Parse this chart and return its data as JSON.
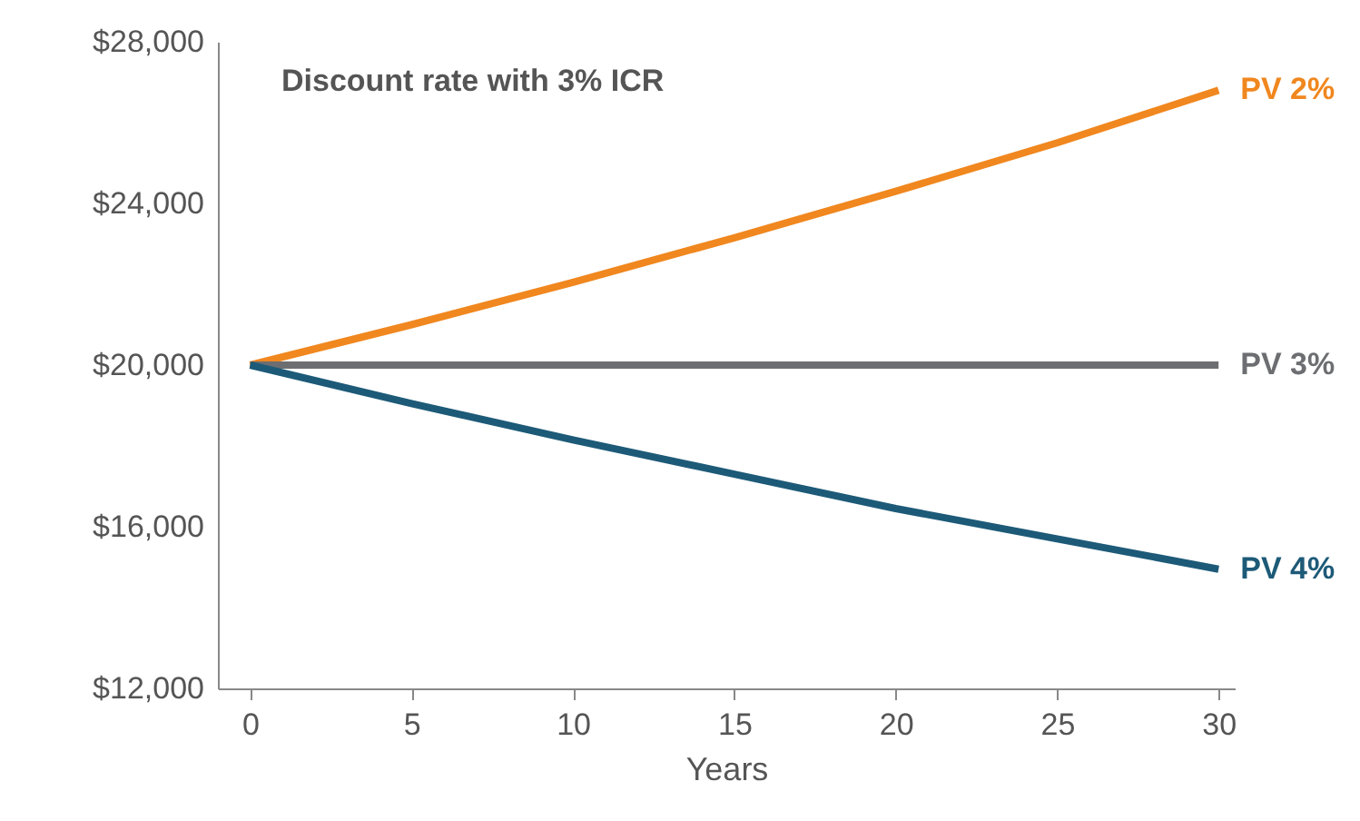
{
  "chart_data": {
    "type": "line",
    "xlabel": "Years",
    "annotations": [
      "Discount rate with 3% ICR"
    ],
    "x": [
      0,
      5,
      10,
      15,
      20,
      25,
      30
    ],
    "series": [
      {
        "name": "PV 2%",
        "color": "#f0871f",
        "values": [
          20000,
          21000,
          22050,
          23150,
          24300,
          25500,
          26800
        ]
      },
      {
        "name": "PV 3%",
        "color": "#6d6e71",
        "values": [
          20000,
          20000,
          20000,
          20000,
          20000,
          20000,
          20000
        ]
      },
      {
        "name": "PV 4%",
        "color": "#1d5a78",
        "values": [
          20000,
          19050,
          18150,
          17300,
          16450,
          15700,
          14950
        ]
      }
    ],
    "xlim": [
      -1,
      30.5
    ],
    "xticks": [
      0,
      5,
      10,
      15,
      20,
      25,
      30
    ],
    "ylim": [
      12000,
      28000
    ],
    "yticks": [
      {
        "value": 12000,
        "label": "$12,000"
      },
      {
        "value": 16000,
        "label": "$16,000"
      },
      {
        "value": 20000,
        "label": "$20,000"
      },
      {
        "value": 24000,
        "label": "$24,000"
      },
      {
        "value": 28000,
        "label": "$28,000"
      }
    ],
    "grid": false,
    "legend": false,
    "marker": "none",
    "line_style": "solid"
  }
}
